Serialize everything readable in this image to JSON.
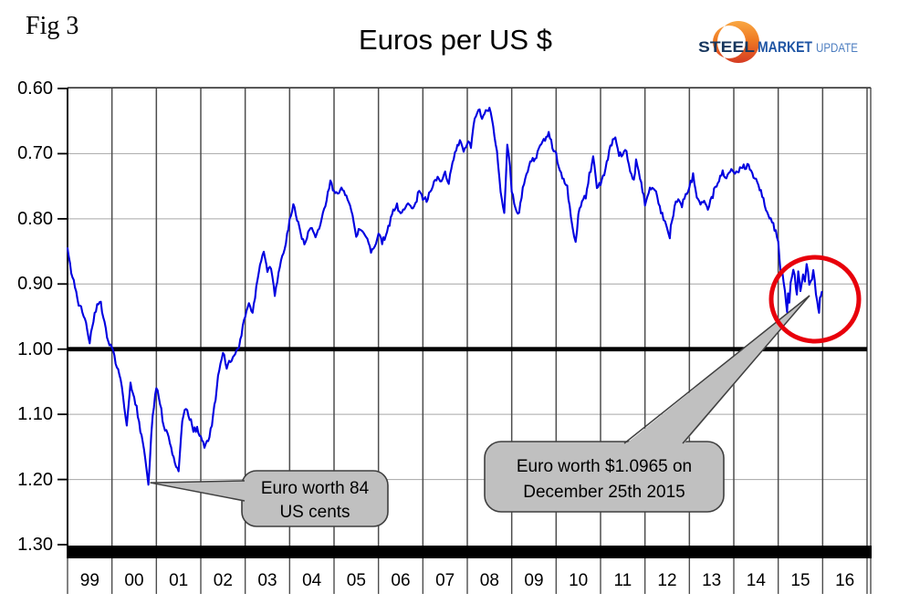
{
  "figure_label": "Fig 3",
  "title": "Euros per US $",
  "logo": {
    "word1": "STEEL",
    "word2": "MARKET",
    "word3": "UPDATE",
    "word1_color": "#17365d",
    "word2_color": "#1f55a4",
    "word3_color": "#4d7ec0",
    "crescent_top_color": "#f9a843",
    "crescent_bottom_color": "#d63b23"
  },
  "chart_data": {
    "type": "line",
    "title": "Euros per US $",
    "xlabel": "",
    "ylabel": "",
    "x_ticks": [
      "99",
      "00",
      "01",
      "02",
      "03",
      "04",
      "05",
      "06",
      "07",
      "08",
      "09",
      "10",
      "11",
      "12",
      "13",
      "14",
      "15",
      "16"
    ],
    "y_ticks": [
      "0.60",
      "0.70",
      "0.80",
      "0.90",
      "1.00",
      "1.10",
      "1.20",
      "1.30"
    ],
    "y_tick_values": [
      0.6,
      0.7,
      0.8,
      0.9,
      1.0,
      1.1,
      1.2,
      1.3
    ],
    "ylim": [
      0.6,
      1.3
    ],
    "y_axis_inverted_note": "0.60 at top, 1.30 at bottom",
    "xlim_years": [
      1999,
      2017
    ],
    "grid": "vertical dark gridlines per year; light horizontal gridlines; bold black line at 1.00; thick black bar at 1.30",
    "line_color": "#0000e0",
    "reference_line_value": 1.0,
    "series": [
      {
        "name": "Euros per US $",
        "points": [
          [
            1999.0,
            0.845
          ],
          [
            1999.083,
            0.88
          ],
          [
            1999.167,
            0.905
          ],
          [
            1999.25,
            0.93
          ],
          [
            1999.333,
            0.94
          ],
          [
            1999.417,
            0.962
          ],
          [
            1999.5,
            0.99
          ],
          [
            1999.583,
            0.955
          ],
          [
            1999.667,
            0.935
          ],
          [
            1999.75,
            0.93
          ],
          [
            1999.833,
            0.962
          ],
          [
            1999.917,
            0.988
          ],
          [
            2000.0,
            0.998
          ],
          [
            2000.083,
            1.022
          ],
          [
            2000.167,
            1.038
          ],
          [
            2000.25,
            1.07
          ],
          [
            2000.333,
            1.12
          ],
          [
            2000.417,
            1.055
          ],
          [
            2000.5,
            1.072
          ],
          [
            2000.583,
            1.1
          ],
          [
            2000.667,
            1.135
          ],
          [
            2000.75,
            1.17
          ],
          [
            2000.82,
            1.207
          ],
          [
            2000.917,
            1.1
          ],
          [
            2001.0,
            1.058
          ],
          [
            2001.083,
            1.082
          ],
          [
            2001.167,
            1.118
          ],
          [
            2001.25,
            1.128
          ],
          [
            2001.333,
            1.152
          ],
          [
            2001.417,
            1.175
          ],
          [
            2001.5,
            1.183
          ],
          [
            2001.583,
            1.11
          ],
          [
            2001.667,
            1.09
          ],
          [
            2001.75,
            1.105
          ],
          [
            2001.833,
            1.124
          ],
          [
            2001.917,
            1.122
          ],
          [
            2002.0,
            1.136
          ],
          [
            2002.083,
            1.15
          ],
          [
            2002.167,
            1.14
          ],
          [
            2002.25,
            1.115
          ],
          [
            2002.333,
            1.075
          ],
          [
            2002.417,
            1.03
          ],
          [
            2002.5,
            1.002
          ],
          [
            2002.583,
            1.03
          ],
          [
            2002.667,
            1.018
          ],
          [
            2002.75,
            1.012
          ],
          [
            2002.833,
            1.002
          ],
          [
            2002.917,
            0.975
          ],
          [
            2003.0,
            0.95
          ],
          [
            2003.083,
            0.93
          ],
          [
            2003.167,
            0.945
          ],
          [
            2003.25,
            0.905
          ],
          [
            2003.333,
            0.87
          ],
          [
            2003.417,
            0.852
          ],
          [
            2003.5,
            0.88
          ],
          [
            2003.583,
            0.875
          ],
          [
            2003.667,
            0.92
          ],
          [
            2003.75,
            0.885
          ],
          [
            2003.833,
            0.855
          ],
          [
            2003.917,
            0.838
          ],
          [
            2004.0,
            0.8
          ],
          [
            2004.083,
            0.778
          ],
          [
            2004.167,
            0.8
          ],
          [
            2004.25,
            0.822
          ],
          [
            2004.333,
            0.836
          ],
          [
            2004.417,
            0.824
          ],
          [
            2004.5,
            0.814
          ],
          [
            2004.583,
            0.824
          ],
          [
            2004.667,
            0.812
          ],
          [
            2004.75,
            0.792
          ],
          [
            2004.833,
            0.77
          ],
          [
            2004.917,
            0.74
          ],
          [
            2005.0,
            0.76
          ],
          [
            2005.083,
            0.765
          ],
          [
            2005.167,
            0.748
          ],
          [
            2005.25,
            0.762
          ],
          [
            2005.333,
            0.778
          ],
          [
            2005.417,
            0.795
          ],
          [
            2005.5,
            0.825
          ],
          [
            2005.583,
            0.815
          ],
          [
            2005.667,
            0.822
          ],
          [
            2005.75,
            0.832
          ],
          [
            2005.833,
            0.852
          ],
          [
            2005.917,
            0.842
          ],
          [
            2006.0,
            0.826
          ],
          [
            2006.083,
            0.835
          ],
          [
            2006.167,
            0.826
          ],
          [
            2006.25,
            0.808
          ],
          [
            2006.333,
            0.788
          ],
          [
            2006.417,
            0.78
          ],
          [
            2006.5,
            0.79
          ],
          [
            2006.583,
            0.783
          ],
          [
            2006.667,
            0.78
          ],
          [
            2006.75,
            0.786
          ],
          [
            2006.833,
            0.775
          ],
          [
            2006.917,
            0.758
          ],
          [
            2007.0,
            0.768
          ],
          [
            2007.083,
            0.77
          ],
          [
            2007.167,
            0.758
          ],
          [
            2007.25,
            0.741
          ],
          [
            2007.333,
            0.737
          ],
          [
            2007.417,
            0.742
          ],
          [
            2007.5,
            0.727
          ],
          [
            2007.583,
            0.744
          ],
          [
            2007.667,
            0.712
          ],
          [
            2007.75,
            0.692
          ],
          [
            2007.833,
            0.68
          ],
          [
            2007.917,
            0.694
          ],
          [
            2008.0,
            0.683
          ],
          [
            2008.083,
            0.687
          ],
          [
            2008.167,
            0.645
          ],
          [
            2008.25,
            0.631
          ],
          [
            2008.333,
            0.643
          ],
          [
            2008.417,
            0.637
          ],
          [
            2008.5,
            0.628
          ],
          [
            2008.583,
            0.657
          ],
          [
            2008.667,
            0.7
          ],
          [
            2008.75,
            0.762
          ],
          [
            2008.833,
            0.788
          ],
          [
            2008.9,
            0.69
          ],
          [
            2008.96,
            0.72
          ],
          [
            2009.0,
            0.757
          ],
          [
            2009.083,
            0.782
          ],
          [
            2009.167,
            0.792
          ],
          [
            2009.25,
            0.754
          ],
          [
            2009.333,
            0.733
          ],
          [
            2009.417,
            0.712
          ],
          [
            2009.5,
            0.709
          ],
          [
            2009.583,
            0.7
          ],
          [
            2009.667,
            0.687
          ],
          [
            2009.75,
            0.676
          ],
          [
            2009.833,
            0.668
          ],
          [
            2009.917,
            0.69
          ],
          [
            2010.0,
            0.701
          ],
          [
            2010.083,
            0.729
          ],
          [
            2010.167,
            0.739
          ],
          [
            2010.25,
            0.749
          ],
          [
            2010.333,
            0.8
          ],
          [
            2010.44,
            0.838
          ],
          [
            2010.5,
            0.795
          ],
          [
            2010.583,
            0.772
          ],
          [
            2010.667,
            0.765
          ],
          [
            2010.75,
            0.733
          ],
          [
            2010.833,
            0.706
          ],
          [
            2010.917,
            0.751
          ],
          [
            2011.0,
            0.745
          ],
          [
            2011.083,
            0.732
          ],
          [
            2011.167,
            0.706
          ],
          [
            2011.25,
            0.683
          ],
          [
            2011.333,
            0.675
          ],
          [
            2011.417,
            0.702
          ],
          [
            2011.5,
            0.699
          ],
          [
            2011.583,
            0.696
          ],
          [
            2011.667,
            0.728
          ],
          [
            2011.75,
            0.744
          ],
          [
            2011.8,
            0.71
          ],
          [
            2011.917,
            0.748
          ],
          [
            2012.0,
            0.776
          ],
          [
            2012.083,
            0.758
          ],
          [
            2012.167,
            0.752
          ],
          [
            2012.25,
            0.758
          ],
          [
            2012.333,
            0.785
          ],
          [
            2012.417,
            0.8
          ],
          [
            2012.56,
            0.826
          ],
          [
            2012.583,
            0.812
          ],
          [
            2012.667,
            0.781
          ],
          [
            2012.75,
            0.77
          ],
          [
            2012.833,
            0.78
          ],
          [
            2012.917,
            0.761
          ],
          [
            2013.0,
            0.752
          ],
          [
            2013.083,
            0.734
          ],
          [
            2013.167,
            0.766
          ],
          [
            2013.25,
            0.775
          ],
          [
            2013.333,
            0.768
          ],
          [
            2013.417,
            0.782
          ],
          [
            2013.5,
            0.77
          ],
          [
            2013.583,
            0.751
          ],
          [
            2013.667,
            0.74
          ],
          [
            2013.75,
            0.726
          ],
          [
            2013.833,
            0.74
          ],
          [
            2013.917,
            0.726
          ],
          [
            2014.0,
            0.731
          ],
          [
            2014.083,
            0.727
          ],
          [
            2014.167,
            0.719
          ],
          [
            2014.25,
            0.722
          ],
          [
            2014.333,
            0.716
          ],
          [
            2014.417,
            0.731
          ],
          [
            2014.5,
            0.74
          ],
          [
            2014.583,
            0.752
          ],
          [
            2014.667,
            0.772
          ],
          [
            2014.75,
            0.79
          ],
          [
            2014.833,
            0.8
          ],
          [
            2014.917,
            0.814
          ],
          [
            2015.0,
            0.833
          ],
          [
            2015.03,
            0.862
          ],
          [
            2015.06,
            0.886
          ],
          [
            2015.09,
            0.878
          ],
          [
            2015.12,
            0.893
          ],
          [
            2015.15,
            0.908
          ],
          [
            2015.18,
            0.935
          ],
          [
            2015.2,
            0.947
          ],
          [
            2015.22,
            0.918
          ],
          [
            2015.25,
            0.925
          ],
          [
            2015.28,
            0.902
          ],
          [
            2015.31,
            0.893
          ],
          [
            2015.34,
            0.878
          ],
          [
            2015.37,
            0.89
          ],
          [
            2015.4,
            0.905
          ],
          [
            2015.42,
            0.915
          ],
          [
            2015.45,
            0.885
          ],
          [
            2015.48,
            0.897
          ],
          [
            2015.5,
            0.908
          ],
          [
            2015.53,
            0.9
          ],
          [
            2015.56,
            0.888
          ],
          [
            2015.6,
            0.894
          ],
          [
            2015.64,
            0.868
          ],
          [
            2015.67,
            0.885
          ],
          [
            2015.7,
            0.9
          ],
          [
            2015.73,
            0.895
          ],
          [
            2015.76,
            0.89
          ],
          [
            2015.79,
            0.878
          ],
          [
            2015.82,
            0.895
          ],
          [
            2015.85,
            0.915
          ],
          [
            2015.88,
            0.928
          ],
          [
            2015.9,
            0.937
          ],
          [
            2015.92,
            0.947
          ],
          [
            2015.94,
            0.924
          ],
          [
            2015.96,
            0.917
          ],
          [
            2015.98,
            0.912
          ]
        ]
      }
    ],
    "annotations": [
      {
        "text_lines": [
          "Euro worth 84",
          "US cents"
        ],
        "target_point": [
          2000.82,
          1.207
        ],
        "box_fill": "#c0c0c0",
        "box_border": "#3f3f3f"
      },
      {
        "text_lines": [
          "Euro worth $1.0965 on",
          "December 25th 2015"
        ],
        "target_point": [
          2015.98,
          0.912
        ],
        "box_fill": "#c0c0c0",
        "box_border": "#3f3f3f"
      }
    ],
    "highlight_circle": {
      "color": "#e8000b",
      "around": "late 2015 values near 0.90-0.95"
    }
  }
}
